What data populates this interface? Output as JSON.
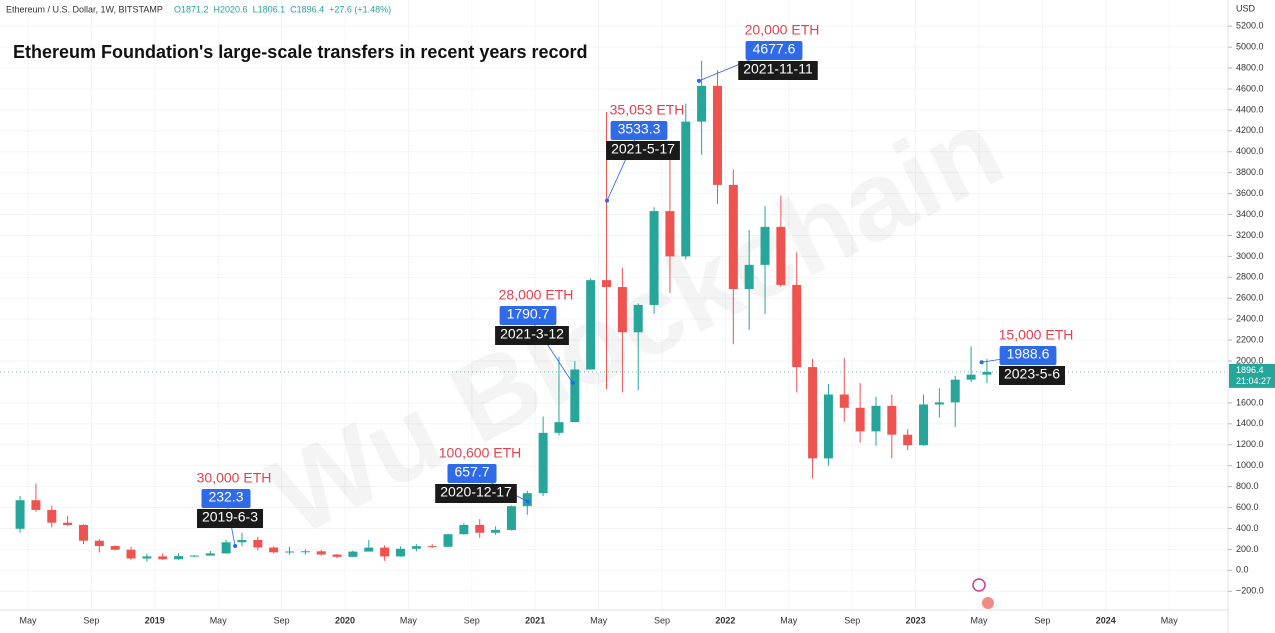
{
  "chart_data": {
    "type": "candlestick",
    "title": "Ethereum Foundation's large-scale transfers in recent years record",
    "watermark": "Wu Blockchain",
    "header": {
      "symbol": "Ethereum / U.S. Dollar, 1W, BITSTAMP",
      "values": [
        "O1871.2",
        "H2020.6",
        "L1806.1",
        "C1896.4",
        "+27.6 (+1.48%)"
      ]
    },
    "currency": "USD",
    "x": [
      "2018-04",
      "2018-05",
      "2018-06",
      "2018-07",
      "2018-08",
      "2018-09",
      "2018-10",
      "2018-11",
      "2018-12",
      "2019-01",
      "2019-02",
      "2019-03",
      "2019-04",
      "2019-05",
      "2019-06",
      "2019-07",
      "2019-08",
      "2019-09",
      "2019-10",
      "2019-11",
      "2019-12",
      "2020-01",
      "2020-02",
      "2020-03",
      "2020-04",
      "2020-05",
      "2020-06",
      "2020-07",
      "2020-08",
      "2020-09",
      "2020-10",
      "2020-11",
      "2020-12",
      "2021-01",
      "2021-02",
      "2021-03",
      "2021-04",
      "2021-05",
      "2021-06",
      "2021-07",
      "2021-08",
      "2021-09",
      "2021-10",
      "2021-11",
      "2021-12",
      "2022-01",
      "2022-02",
      "2022-03",
      "2022-04",
      "2022-05",
      "2022-06",
      "2022-07",
      "2022-08",
      "2022-09",
      "2022-10",
      "2022-11",
      "2022-12",
      "2023-01",
      "2023-02",
      "2023-03",
      "2023-04",
      "2023-05"
    ],
    "open": [
      397,
      670,
      577,
      455,
      433,
      283,
      232,
      197,
      113,
      133,
      106,
      136,
      141,
      162,
      268,
      290,
      218,
      172,
      180,
      182,
      151,
      129,
      179,
      217,
      133,
      206,
      231,
      225,
      345,
      434,
      359,
      386,
      613,
      737,
      1314,
      1416,
      1919,
      2773,
      2707,
      2275,
      2536,
      3433,
      3000,
      4288,
      4630,
      3683,
      2688,
      2919,
      3282,
      2727,
      1942,
      1070,
      1680,
      1553,
      1328,
      1572,
      1296,
      1196,
      1585,
      1605,
      1822,
      1870
    ],
    "high": [
      710,
      830,
      620,
      520,
      440,
      300,
      240,
      225,
      160,
      160,
      165,
      145,
      185,
      290,
      360,
      320,
      230,
      225,
      200,
      195,
      155,
      190,
      290,
      240,
      230,
      250,
      250,
      350,
      450,
      490,
      420,
      620,
      760,
      1470,
      2040,
      2000,
      2790,
      4380,
      2890,
      2550,
      3470,
      3970,
      4460,
      4870,
      4780,
      3830,
      3250,
      3480,
      3580,
      3040,
      2020,
      1780,
      2030,
      1790,
      1660,
      1680,
      1350,
      1680,
      1740,
      1860,
      2140,
      2020
    ],
    "low": [
      360,
      560,
      410,
      425,
      250,
      170,
      190,
      100,
      82,
      100,
      100,
      130,
      140,
      158,
      230,
      190,
      160,
      150,
      150,
      140,
      115,
      125,
      180,
      90,
      130,
      180,
      215,
      220,
      340,
      310,
      340,
      380,
      530,
      710,
      1290,
      1430,
      1930,
      1730,
      1700,
      1720,
      2450,
      2650,
      2970,
      3970,
      3500,
      2160,
      2300,
      2450,
      2710,
      1700,
      880,
      1000,
      1420,
      1220,
      1190,
      1070,
      1150,
      1190,
      1460,
      1370,
      1800,
      1790
    ],
    "close": [
      670,
      577,
      455,
      433,
      283,
      232,
      197,
      113,
      133,
      106,
      136,
      141,
      162,
      268,
      290,
      218,
      172,
      180,
      182,
      151,
      129,
      179,
      217,
      133,
      206,
      231,
      225,
      345,
      434,
      359,
      386,
      613,
      737,
      1314,
      1416,
      1919,
      2773,
      2707,
      2275,
      2536,
      3433,
      3000,
      4288,
      4630,
      3683,
      2688,
      2919,
      3282,
      2727,
      1942,
      1070,
      1680,
      1553,
      1328,
      1572,
      1296,
      1196,
      1585,
      1605,
      1822,
      1870,
      1896.4
    ],
    "up_color": "#26a69a",
    "down_color": "#ef5350",
    "ylim": [
      -360,
      5450
    ],
    "yticks": [
      {
        "value": 5200,
        "label": "5200.0"
      },
      {
        "value": 5000,
        "label": "5000.0"
      },
      {
        "value": 4800,
        "label": "4800.0"
      },
      {
        "value": 4600,
        "label": "4600.0"
      },
      {
        "value": 4400,
        "label": "4400.0"
      },
      {
        "value": 4200,
        "label": "4200.0"
      },
      {
        "value": 4000,
        "label": "4000.0"
      },
      {
        "value": 3800,
        "label": "3800.0"
      },
      {
        "value": 3600,
        "label": "3600.0"
      },
      {
        "value": 3400,
        "label": "3400.0"
      },
      {
        "value": 3200,
        "label": "3200.0"
      },
      {
        "value": 3000,
        "label": "3000.0"
      },
      {
        "value": 2800,
        "label": "2800.0"
      },
      {
        "value": 2600,
        "label": "2600.0"
      },
      {
        "value": 2400,
        "label": "2400.0"
      },
      {
        "value": 2200,
        "label": "2200.0"
      },
      {
        "value": 2000,
        "label": "2000.0"
      },
      {
        "value": 1600,
        "label": "1600.0"
      },
      {
        "value": 1400,
        "label": "1400.0"
      },
      {
        "value": 1200,
        "label": "1200.0"
      },
      {
        "value": 1000,
        "label": "1000.0"
      },
      {
        "value": 800,
        "label": "800.0"
      },
      {
        "value": 600,
        "label": "600.0"
      },
      {
        "value": 400,
        "label": "400.0"
      },
      {
        "value": 200,
        "label": "200.0"
      },
      {
        "value": 0,
        "label": "0.0"
      },
      {
        "value": -200,
        "label": "−200.0"
      }
    ],
    "xticks": [
      {
        "value": "2018-05",
        "label": "May"
      },
      {
        "value": "2018-09",
        "label": "Sep"
      },
      {
        "value": "2019-01",
        "label": "2019"
      },
      {
        "value": "2019-05",
        "label": "May"
      },
      {
        "value": "2019-09",
        "label": "Sep"
      },
      {
        "value": "2020-01",
        "label": "2020"
      },
      {
        "value": "2020-05",
        "label": "May"
      },
      {
        "value": "2020-09",
        "label": "Sep"
      },
      {
        "value": "2021-01",
        "label": "2021"
      },
      {
        "value": "2021-05",
        "label": "May"
      },
      {
        "value": "2021-09",
        "label": "Sep"
      },
      {
        "value": "2022-01",
        "label": "2022"
      },
      {
        "value": "2022-05",
        "label": "May"
      },
      {
        "value": "2022-09",
        "label": "Sep"
      },
      {
        "value": "2023-01",
        "label": "2023"
      },
      {
        "value": "2023-05",
        "label": "May"
      },
      {
        "value": "2023-09",
        "label": "Sep"
      },
      {
        "value": "2024-01",
        "label": "2024"
      },
      {
        "value": "2024-05",
        "label": "May"
      }
    ],
    "last_price": 1896.4,
    "last_time": "21:04:27",
    "annotations": [
      {
        "amount": "30,000 ETH",
        "price": 232.3,
        "date": "2019-6-3"
      },
      {
        "amount": "100,600 ETH",
        "price": 657.7,
        "date": "2020-12-17"
      },
      {
        "amount": "28,000 ETH",
        "price": 1790.7,
        "date": "2021-3-12"
      },
      {
        "amount": "35,053 ETH",
        "price": 3533.3,
        "date": "2021-5-17"
      },
      {
        "amount": "20,000 ETH",
        "price": 4677.6,
        "date": "2021-11-11"
      },
      {
        "amount": "15,000 ETH",
        "price": 1988.6,
        "date": "2023-5-6"
      }
    ]
  }
}
